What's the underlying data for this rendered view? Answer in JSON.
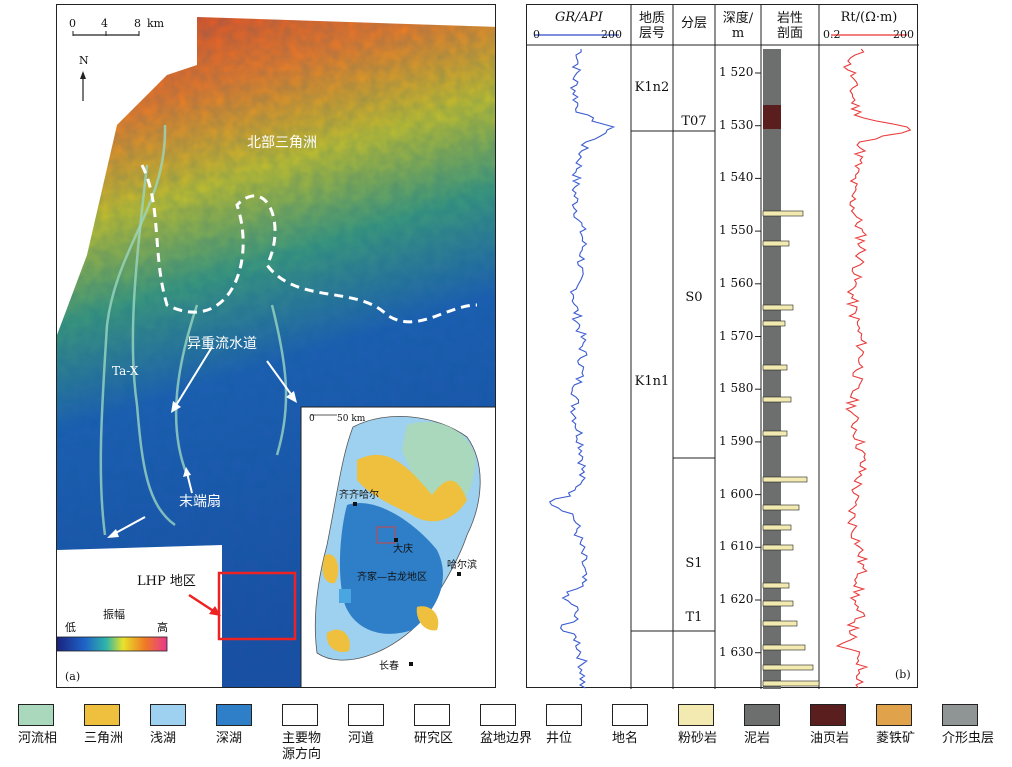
{
  "panel_a": {
    "scale_ticks": [
      "0",
      "4",
      "8"
    ],
    "scale_unit": "km",
    "north": "N",
    "label_delta": "北部三角洲",
    "label_channel": "异重流水道",
    "label_tax": "Ta-X",
    "label_fan": "末端扇",
    "label_lhp": "LHP 地区",
    "amp_title": "振幅",
    "amp_low": "低",
    "amp_high": "高",
    "tag": "(a)",
    "inset": {
      "scale_ticks": [
        "0",
        "50 km"
      ],
      "cities": [
        "齐齐哈尔",
        "大庆",
        "哈尔滨",
        "齐家—古龙地区",
        "长春"
      ]
    }
  },
  "panel_b": {
    "gr_head": "GR/API",
    "gr_min": "0",
    "gr_max": "200",
    "formation_head": "地质\n层号",
    "layer_head": "分层",
    "depth_head": "深度/\nm",
    "litho_head": "岩性\n剖面",
    "rt_head": "Rt/(Ω·m)",
    "rt_min": "0.2",
    "rt_max": "200",
    "formations": [
      "K1n2",
      "K1n1"
    ],
    "layers": [
      "T07",
      "S0",
      "S1",
      "T1"
    ],
    "depths": [
      "1 520",
      "1 530",
      "1 540",
      "1 550",
      "1 560",
      "1 570",
      "1 580",
      "1 590",
      "1 600",
      "1 610",
      "1 620",
      "1 630"
    ],
    "tag": "(b)"
  },
  "legend": [
    {
      "label": "河流相",
      "color": "#a9d8bd"
    },
    {
      "label": "三角洲",
      "color": "#eec03d"
    },
    {
      "label": "浅湖",
      "color": "#9ed0f0"
    },
    {
      "label": "深湖",
      "color": "#2f7fc8"
    },
    {
      "label": "主要物\n源方向",
      "color": "#ffffff"
    },
    {
      "label": "河道",
      "color": "#ffffff"
    },
    {
      "label": "研究区",
      "color": "#ffffff"
    },
    {
      "label": "盆地边界",
      "color": "#ffffff"
    },
    {
      "label": "井位",
      "color": "#ffffff"
    },
    {
      "label": "地名",
      "color": "#ffffff"
    },
    {
      "label": "粉砂岩",
      "color": "#f2eab0"
    },
    {
      "label": "泥岩",
      "color": "#6d6f6f"
    },
    {
      "label": "油页岩",
      "color": "#5b1e1e"
    },
    {
      "label": "菱铁矿",
      "color": "#e0a24a"
    },
    {
      "label": "介形虫层",
      "color": "#8f9494"
    }
  ]
}
